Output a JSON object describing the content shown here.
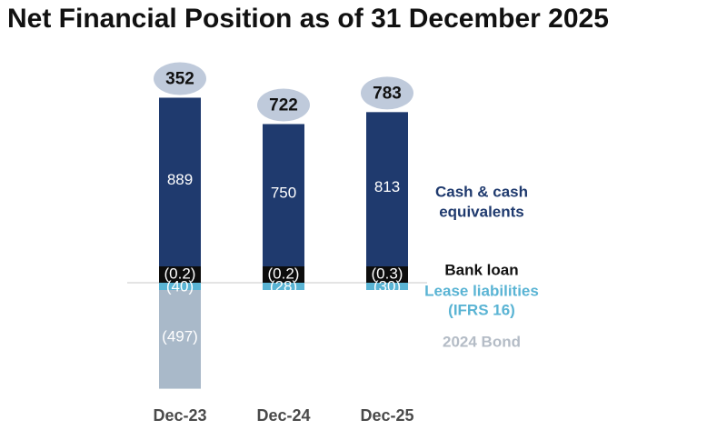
{
  "title": "Net Financial Position as of 31 December 2025",
  "chart_data": {
    "type": "bar",
    "stacked": true,
    "categories": [
      "Dec-23",
      "Dec-24",
      "Dec-25"
    ],
    "totals": [
      352,
      722,
      783
    ],
    "total_labels": [
      "352",
      "722",
      "783"
    ],
    "series": [
      {
        "name": "Cash & cash equivalents",
        "legend_lines": [
          "Cash & cash",
          "equivalents"
        ],
        "values": [
          889,
          750,
          813
        ],
        "labels": [
          "889",
          "750",
          "813"
        ],
        "color": "#1f3a6e",
        "text_color": "#ffffff"
      },
      {
        "name": "Bank loan",
        "legend_lines": [
          "Bank loan"
        ],
        "values": [
          -0.2,
          -0.2,
          -0.3
        ],
        "labels": [
          "(0.2)",
          "(0.2)",
          "(0.3)"
        ],
        "color": "#0d0d0d",
        "text_color": "#ffffff"
      },
      {
        "name": "Lease liabilities (IFRS 16)",
        "legend_lines": [
          "Lease liabilities",
          "(IFRS 16)"
        ],
        "values": [
          -40,
          -28,
          -30
        ],
        "labels": [
          "(40)",
          "(28)",
          "(30)"
        ],
        "color": "#5ab4d4",
        "text_color": "#ffffff"
      },
      {
        "name": "2024 Bond",
        "legend_lines": [
          "2024 Bond"
        ],
        "values": [
          -497,
          null,
          null
        ],
        "labels": [
          "(497)",
          "",
          ""
        ],
        "color": "#a9b9c9",
        "text_color": "#ffffff"
      }
    ],
    "colors": {
      "total_ellipse": "#bfcadb",
      "baseline": "#c8c8c8",
      "legend_cash": "#1f3a6e",
      "legend_bank": "#111111",
      "legend_lease": "#5ab4d4",
      "legend_bond": "#b4bcc6"
    }
  }
}
